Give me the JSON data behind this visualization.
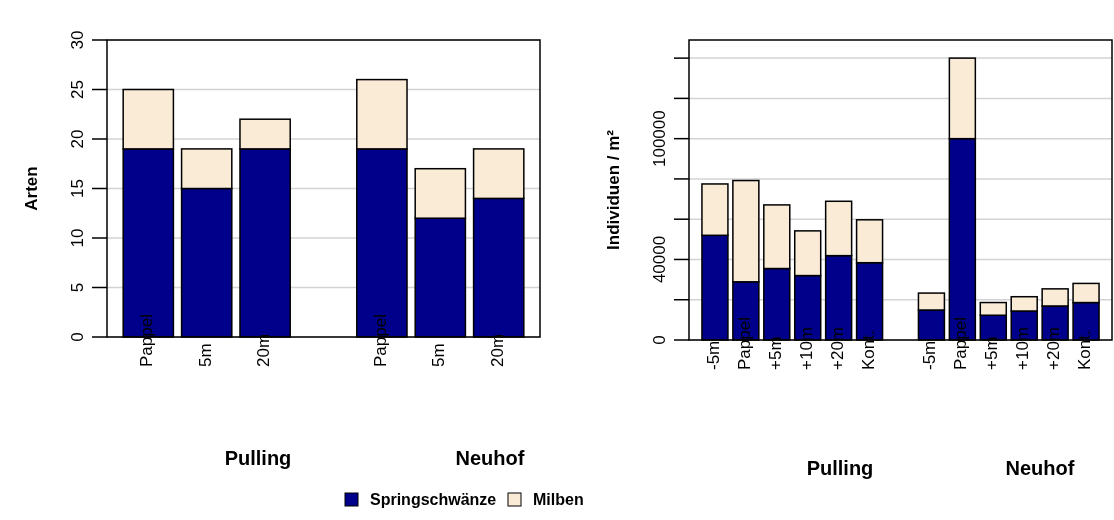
{
  "chart_data": [
    {
      "type": "bar",
      "stacked": true,
      "ylabel": "Arten",
      "categories": [
        "Pappel",
        "5m",
        "20m",
        null,
        "Pappel",
        "5m",
        "20m"
      ],
      "series": [
        {
          "name": "Springschwänze",
          "color": "#00008b",
          "values": [
            19,
            15,
            19,
            null,
            19,
            12,
            14
          ]
        },
        {
          "name": "Milben",
          "color": "#faebd7",
          "values": [
            6,
            4,
            3,
            null,
            7,
            5,
            5
          ]
        }
      ],
      "ylim": [
        0,
        30
      ],
      "yticks": [
        0,
        5,
        10,
        15,
        20,
        25,
        30
      ],
      "grid": "y",
      "legend": "bottom",
      "annotations": [
        "Pulling",
        "Neuhof"
      ]
    },
    {
      "type": "bar",
      "stacked": true,
      "ylabel": "Individuen / m²",
      "categories": [
        "-5m",
        "Pappel",
        "+5m",
        "+10m",
        "+20m",
        "Kont.",
        null,
        "-5m",
        "Pappel",
        "+5m",
        "+10m",
        "+20m",
        "Kont."
      ],
      "series": [
        {
          "color": "#00008b",
          "values": [
            52000,
            28900,
            35500,
            32000,
            41900,
            38400,
            null,
            14900,
            100000,
            12300,
            14400,
            16900,
            18600
          ]
        },
        {
          "color": "#faebd7",
          "values": [
            25500,
            50300,
            31600,
            22200,
            27000,
            21300,
            null,
            8400,
            40000,
            6300,
            7100,
            8500,
            9500
          ]
        }
      ],
      "ylim": [
        0,
        149000
      ],
      "yticks": [
        0,
        {
          "value": 20000,
          "label": null
        },
        40000,
        {
          "value": 60000,
          "label": null
        },
        {
          "value": 80000,
          "label": null
        },
        100000,
        {
          "value": 120000,
          "label": null
        },
        {
          "value": 140000,
          "label": null
        }
      ],
      "grid": "y",
      "annotations": [
        "Pulling",
        "Neuhof"
      ]
    }
  ]
}
